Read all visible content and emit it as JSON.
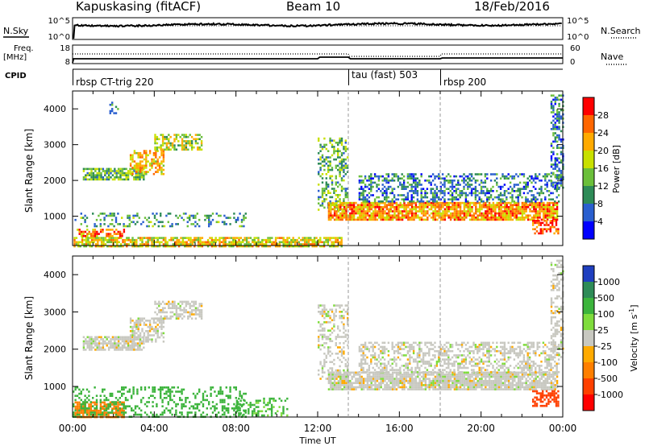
{
  "header": {
    "title": "Kapuskasing (fitACF)",
    "beam": "Beam 10",
    "date": "18/Feb/2016"
  },
  "top_panels": {
    "nsky_label": "N.Sky",
    "nsky_ticks": [
      "10^5",
      "10^0"
    ],
    "nsearch_label": "N.Search",
    "nsearch_ticks": [
      "10^5",
      "10^0"
    ],
    "freq_label_1": "Freq.",
    "freq_label_2": "[MHz]",
    "freq_ticks": [
      "18",
      "8"
    ],
    "nave_label": "Nave",
    "nave_ticks": [
      "60",
      "0"
    ],
    "cpid_label": "CPID",
    "cpid_segments": [
      {
        "label": "rbsp CT-trig 220",
        "start_hour": 0
      },
      {
        "label": "tau (fast) 503",
        "start_hour": 13.5
      },
      {
        "label": "rbsp 200",
        "start_hour": 18
      }
    ]
  },
  "power_colorbar": {
    "title": "Power [dB]",
    "ticks": [
      "28",
      "24",
      "20",
      "16",
      "12",
      "8",
      "4"
    ],
    "colors": [
      "#0000ff",
      "#2a5fcf",
      "#2e8b57",
      "#6bbf3a",
      "#c8e000",
      "#ffaa00",
      "#ff6600",
      "#ff0000"
    ]
  },
  "velocity_colorbar": {
    "title": "Velocity [m s",
    "title_sup": "-1",
    "title_end": "]",
    "ticks": [
      "1000",
      "500",
      "100",
      "25",
      "-25",
      "-100",
      "-500",
      "-1000"
    ],
    "colors": [
      "#1f3fbf",
      "#2e8b57",
      "#3cb43c",
      "#7fdc3c",
      "#c8c8c0",
      "#ffaa00",
      "#ff7f00",
      "#ff4000",
      "#ff0000"
    ]
  },
  "axes": {
    "xlabel": "Time UT",
    "ylabel": "Slant Range [km]",
    "xticks": [
      "00:00",
      "04:00",
      "08:00",
      "12:00",
      "16:00",
      "20:00",
      "00:00"
    ],
    "yticks": [
      "1000",
      "2000",
      "3000",
      "4000"
    ]
  },
  "chart_data": [
    {
      "type": "heatmap",
      "title": "",
      "xlabel": "",
      "ylabel": "Slant Range [km]",
      "quantity": "Power [dB]",
      "xlim_hours": [
        0,
        24
      ],
      "ylim_km": [
        180,
        4500
      ],
      "color_range": [
        0,
        30
      ],
      "vlines_hours": [
        13.5,
        18
      ],
      "regions": [
        {
          "t0": 0.05,
          "t1": 13.2,
          "r0": 180,
          "r1": 420,
          "level": 18,
          "density": 0.75
        },
        {
          "t0": 0.2,
          "t1": 2.5,
          "r0": 420,
          "r1": 650,
          "level": 24,
          "density": 0.6
        },
        {
          "t0": 0.0,
          "t1": 8.5,
          "r0": 700,
          "r1": 1100,
          "level": 10,
          "density": 0.28
        },
        {
          "t0": 0.5,
          "t1": 3.5,
          "r0": 2000,
          "r1": 2350,
          "level": 12,
          "density": 0.8
        },
        {
          "t0": 2.8,
          "t1": 4.5,
          "r0": 2200,
          "r1": 2850,
          "level": 20,
          "density": 0.6
        },
        {
          "t0": 4.0,
          "t1": 6.3,
          "r0": 2850,
          "r1": 3300,
          "level": 16,
          "density": 0.55
        },
        {
          "t0": 1.8,
          "t1": 2.2,
          "r0": 3900,
          "r1": 4200,
          "level": 8,
          "density": 0.35
        },
        {
          "t0": 12.0,
          "t1": 13.5,
          "r0": 1200,
          "r1": 3200,
          "level": 12,
          "density": 0.4
        },
        {
          "t0": 12.5,
          "t1": 23.7,
          "r0": 900,
          "r1": 1400,
          "level": 22,
          "density": 0.85
        },
        {
          "t0": 14.0,
          "t1": 23.8,
          "r0": 1400,
          "r1": 2200,
          "level": 8,
          "density": 0.45
        },
        {
          "t0": 22.5,
          "t1": 23.8,
          "r0": 500,
          "r1": 900,
          "level": 26,
          "density": 0.6
        },
        {
          "t0": 23.4,
          "t1": 24.0,
          "r0": 1800,
          "r1": 4400,
          "level": 8,
          "density": 0.45
        }
      ]
    },
    {
      "type": "heatmap",
      "title": "",
      "xlabel": "Time UT",
      "ylabel": "Slant Range [km]",
      "quantity": "Velocity [m s^-1]",
      "xlim_hours": [
        0,
        24
      ],
      "ylim_km": [
        180,
        4500
      ],
      "color_range": [
        -1000,
        1000
      ],
      "vlines_hours": [
        13.5,
        18
      ],
      "regions": [
        {
          "t0": 0.1,
          "t1": 2.5,
          "r0": 200,
          "r1": 600,
          "level": -300,
          "density": 0.75
        },
        {
          "t0": 0.0,
          "t1": 8.5,
          "r0": 200,
          "r1": 1000,
          "level": 150,
          "density": 0.3
        },
        {
          "t0": 0.5,
          "t1": 3.5,
          "r0": 2000,
          "r1": 2350,
          "level": 0,
          "density": 0.8
        },
        {
          "t0": 2.8,
          "t1": 4.5,
          "r0": 2200,
          "r1": 2850,
          "level": 0,
          "density": 0.6
        },
        {
          "t0": 4.0,
          "t1": 6.3,
          "r0": 2850,
          "r1": 3300,
          "level": 0,
          "density": 0.55
        },
        {
          "t0": 8.0,
          "t1": 10.5,
          "r0": 200,
          "r1": 700,
          "level": 120,
          "density": 0.35
        },
        {
          "t0": 12.0,
          "t1": 13.5,
          "r0": 1200,
          "r1": 3200,
          "level": 0,
          "density": 0.4
        },
        {
          "t0": 12.5,
          "t1": 23.7,
          "r0": 900,
          "r1": 1400,
          "level": 0,
          "density": 0.85
        },
        {
          "t0": 14.0,
          "t1": 23.8,
          "r0": 1400,
          "r1": 2200,
          "level": 0,
          "density": 0.45
        },
        {
          "t0": 22.5,
          "t1": 23.8,
          "r0": 500,
          "r1": 900,
          "level": -600,
          "density": 0.6
        },
        {
          "t0": 23.4,
          "t1": 24.0,
          "r0": 1800,
          "r1": 4400,
          "level": 0,
          "density": 0.45
        }
      ]
    }
  ]
}
